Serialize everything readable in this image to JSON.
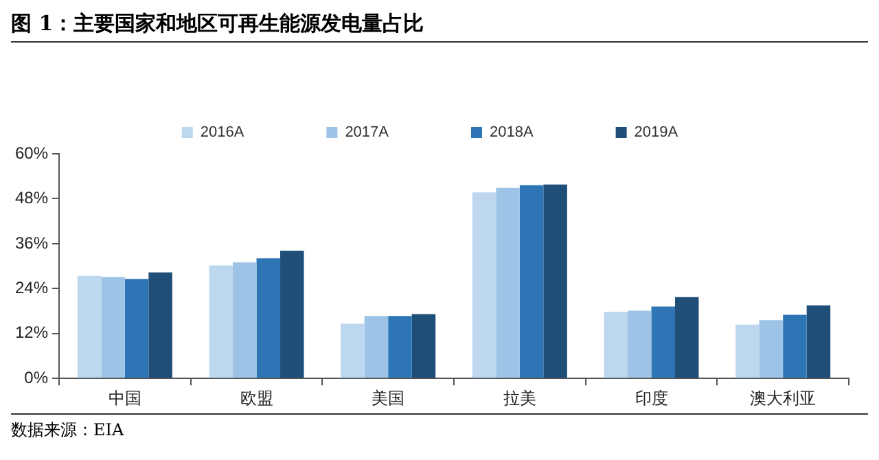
{
  "chart_data": {
    "type": "bar",
    "title": "图 1：主要国家和地区可再生能源发电量占比",
    "categories": [
      "中国",
      "欧盟",
      "美国",
      "拉美",
      "印度",
      "澳大利亚"
    ],
    "series": [
      {
        "name": "2016A",
        "color": "#bdd7ee",
        "values": [
          27.4,
          30.2,
          14.6,
          49.7,
          17.8,
          14.4
        ]
      },
      {
        "name": "2017A",
        "color": "#9dc3e6",
        "values": [
          27.1,
          31.0,
          16.7,
          50.9,
          18.1,
          15.6
        ]
      },
      {
        "name": "2018A",
        "color": "#2e75b6",
        "values": [
          26.6,
          32.1,
          16.7,
          51.6,
          19.2,
          17.0
        ]
      },
      {
        "name": "2019A",
        "color": "#1f4e79",
        "values": [
          28.3,
          34.1,
          17.2,
          51.8,
          21.7,
          19.5
        ]
      }
    ],
    "ylim": [
      0,
      60
    ],
    "yticks": [
      {
        "value": 0,
        "label": "0%"
      },
      {
        "value": 12,
        "label": "12%"
      },
      {
        "value": 24,
        "label": "24%"
      },
      {
        "value": 36,
        "label": "36%"
      },
      {
        "value": 48,
        "label": "48%"
      },
      {
        "value": 60,
        "label": "60%"
      }
    ],
    "grid": false,
    "legend": "top",
    "annotations": [
      "数据来源：EIA"
    ]
  }
}
